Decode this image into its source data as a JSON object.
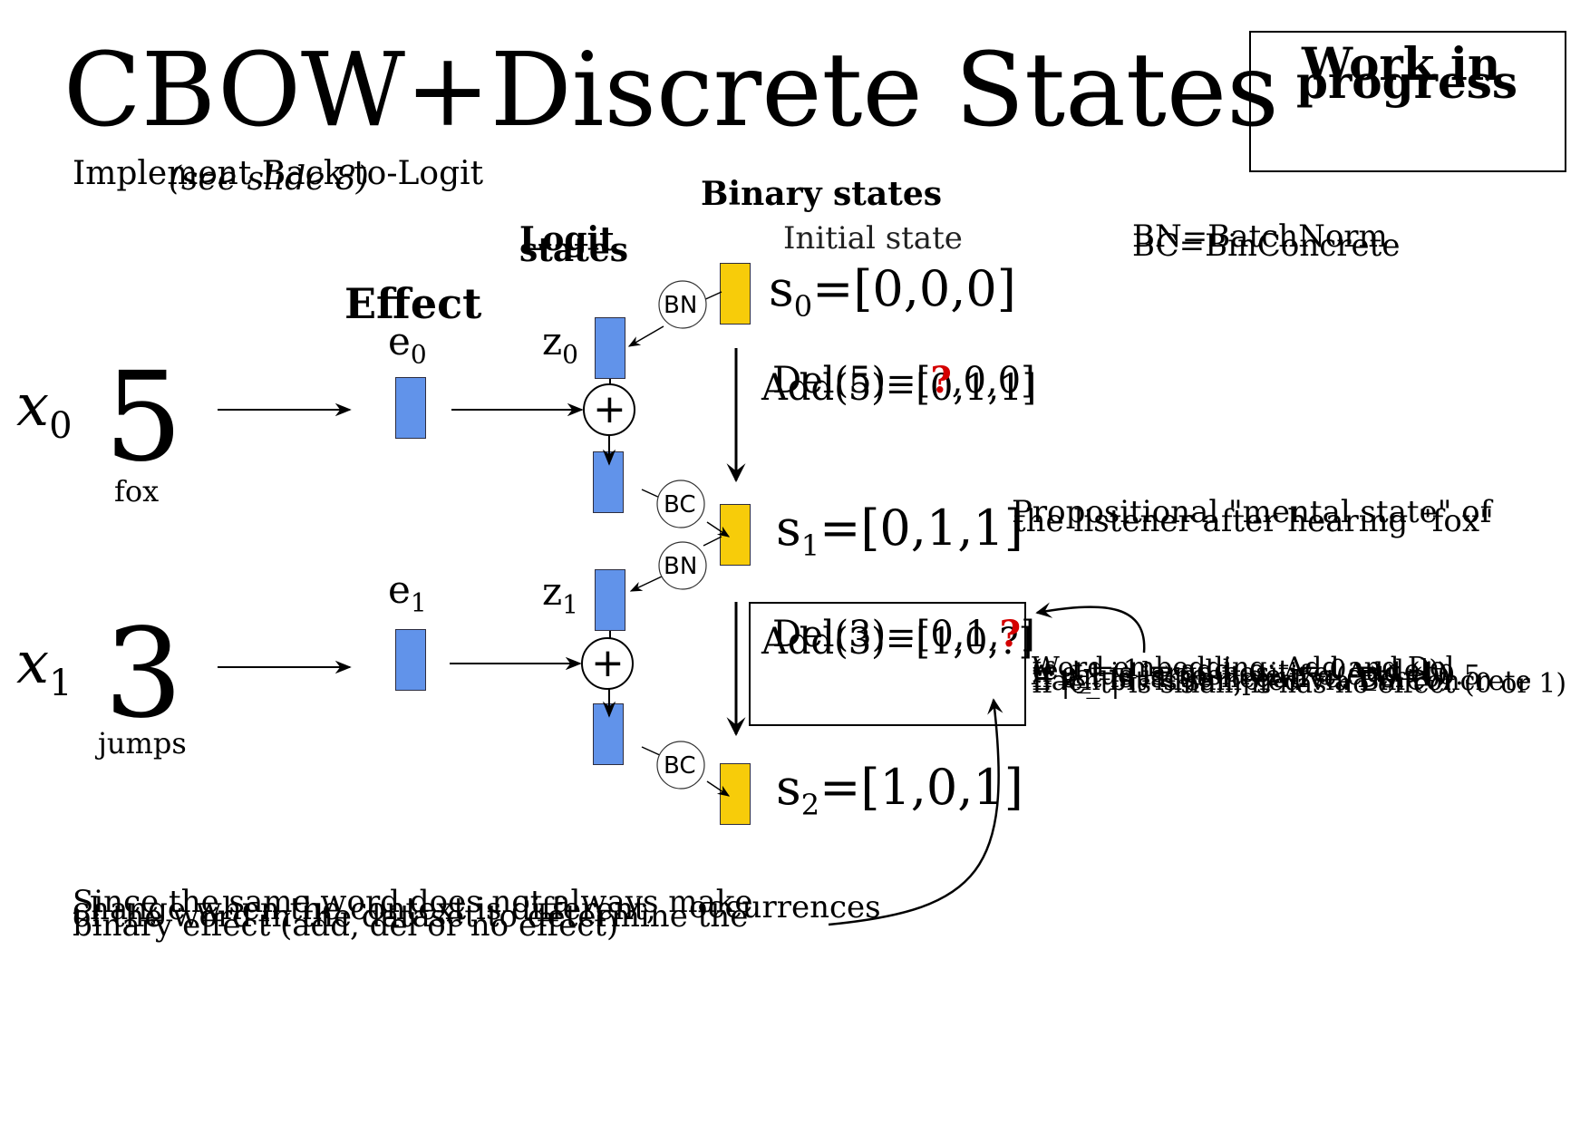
{
  "title": "CBOW+Discrete States",
  "wip_badge": {
    "line1": "Work in",
    "line2": "progress"
  },
  "top_note": {
    "text": "Implement Back-to-Logit",
    "overlay": "(see slide 8)"
  },
  "headings": {
    "binary_states": "Binary states",
    "logit_states_1": "Logit",
    "logit_states_2": "states",
    "effect": "Effect"
  },
  "initial_state": "Initial state",
  "legend": {
    "bn": "BN=BatchNorm",
    "bc": "BC=BinConcrete"
  },
  "inputs": [
    {
      "var": "x",
      "sub": "0",
      "digit": "5",
      "word": "fox"
    },
    {
      "var": "x",
      "sub": "1",
      "digit": "3",
      "word": "jumps"
    }
  ],
  "effects": [
    {
      "label": "e",
      "sub": "0"
    },
    {
      "label": "e",
      "sub": "1"
    }
  ],
  "logits": [
    {
      "label": "z",
      "sub": "0"
    },
    {
      "label": "z",
      "sub": "1"
    }
  ],
  "states": [
    {
      "label": "s",
      "sub": "0",
      "value": "=[0,0,0]"
    },
    {
      "label": "s",
      "sub": "1",
      "value": "=[0,1,1]"
    },
    {
      "label": "s",
      "sub": "2",
      "value": "=[1,0,1]"
    }
  ],
  "circles": {
    "bn": "BN",
    "bc": "BC",
    "plus": "+"
  },
  "ops": [
    {
      "add": "Add(5)=[0,1,1]",
      "del_pre": "Del(5)=[",
      "del_q": "?",
      "del_post": ",0,0]"
    },
    {
      "add": "Add(3)=[1,0,?]",
      "del_pre": "Del(3)=[0,1,",
      "del_q": "?",
      "del_post": "]"
    }
  ],
  "mental_state": {
    "line1": "Propositional \"mental state\" of",
    "line2": "the listener after hearing \"fox\""
  },
  "word_embedding_notes": [
    "Word embedding: Add and Del",
    "If e_t is large positive, Add (1)",
    "If e_t is large negative, Del (0)",
    "If |e_t| is small, it has no effect (0 or 1)",
    "A value is positive if σ(e_t) > 0.5",
    "Each bit is sampled via BinConcrete",
    "(e_t = 1 ⇒ add, e_t = 0 ⇒ del)"
  ],
  "bottom_note": [
    "Since the same word does not always make",
    "change when the context is different,",
    "binary effect (add, del or no effect)",
    "of the word in the dataset to determine the",
    "occurrences"
  ],
  "colors": {
    "logit_box": "#6193ea",
    "state_box": "#f7cc0a",
    "highlight": "#d40000"
  }
}
